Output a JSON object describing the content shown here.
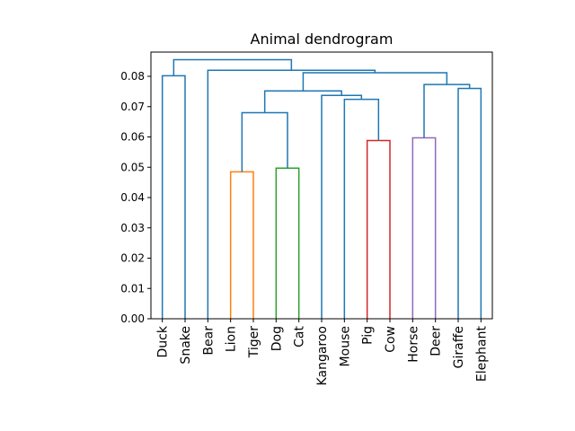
{
  "chart_data": {
    "type": "dendrogram",
    "title": "Animal dendrogram",
    "xlabel": "",
    "ylabel": "",
    "ylim": [
      0,
      0.088
    ],
    "yticks": [
      "0.00",
      "0.01",
      "0.02",
      "0.03",
      "0.04",
      "0.05",
      "0.06",
      "0.07",
      "0.08"
    ],
    "leaves": [
      "Duck",
      "Snake",
      "Bear",
      "Lion",
      "Tiger",
      "Dog",
      "Cat",
      "Kangaroo",
      "Mouse",
      "Pig",
      "Cow",
      "Horse",
      "Deer",
      "Giraffe",
      "Elephant"
    ],
    "merges": [
      {
        "left": "Lion",
        "right": "Tiger",
        "height": 0.0485,
        "color": "#ff7f0e"
      },
      {
        "left": "Dog",
        "right": "Cat",
        "height": 0.0497,
        "color": "#2ca02c"
      },
      {
        "left": "Pig",
        "right": "Cow",
        "height": 0.0588,
        "color": "#d62728"
      },
      {
        "left": "Horse",
        "right": "Deer",
        "height": 0.0597,
        "color": "#9467bd"
      },
      {
        "left": "Mouse",
        "right": "Pig+Cow",
        "height": 0.0724,
        "color": "#1f77b4"
      },
      {
        "left": "Lion+Tiger",
        "right": "Dog+Cat",
        "height": 0.068,
        "color": "#1f77b4"
      },
      {
        "left": "Kangaroo",
        "right": "Mouse+Pig+Cow",
        "height": 0.0737,
        "color": "#1f77b4"
      },
      {
        "left": "Lion+Tiger+Dog+Cat",
        "right": "Kangaroo+Mouse+Pig+Cow",
        "height": 0.0752,
        "color": "#1f77b4"
      },
      {
        "left": "Giraffe",
        "right": "Elephant",
        "height": 0.076,
        "color": "#1f77b4"
      },
      {
        "left": "Horse+Deer",
        "right": "Giraffe+Elephant",
        "height": 0.0773,
        "color": "#1f77b4"
      },
      {
        "left": "Duck",
        "right": "Snake",
        "height": 0.0802,
        "color": "#1f77b4"
      },
      {
        "left": "Lion..Cow",
        "right": "Horse..Elephant",
        "height": 0.0812,
        "color": "#1f77b4"
      },
      {
        "left": "Bear",
        "right": "Lion..Elephant",
        "height": 0.082,
        "color": "#1f77b4"
      },
      {
        "left": "Duck+Snake",
        "right": "Bear..Elephant",
        "height": 0.0855,
        "color": "#1f77b4"
      }
    ],
    "grid": false,
    "legend": "none"
  }
}
